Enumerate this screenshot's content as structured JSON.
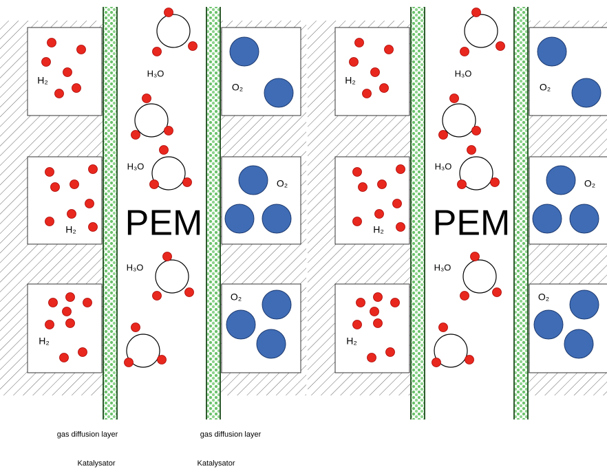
{
  "panels": [
    {
      "h2_labels": [
        "H₂",
        "H₂",
        "H₂"
      ],
      "h3o_labels": [
        "H₃O",
        "H₃O",
        "H₃O"
      ],
      "o2_labels": [
        "O₂",
        "O₂",
        "O₂"
      ],
      "membrane": "PEM"
    },
    {
      "h2_labels": [
        "H₂",
        "H₂",
        "H₂"
      ],
      "h3o_labels": [
        "H₃O",
        "H₃O",
        "H₃O"
      ],
      "o2_labels": [
        "O₂",
        "O₂",
        "O₂"
      ],
      "membrane": "PEM"
    }
  ],
  "captions": {
    "gas_diffusion_layer": [
      "gas diffusion layer",
      "gas diffusion layer"
    ],
    "catalyst": [
      "Katalysator",
      "Katalysator"
    ]
  }
}
